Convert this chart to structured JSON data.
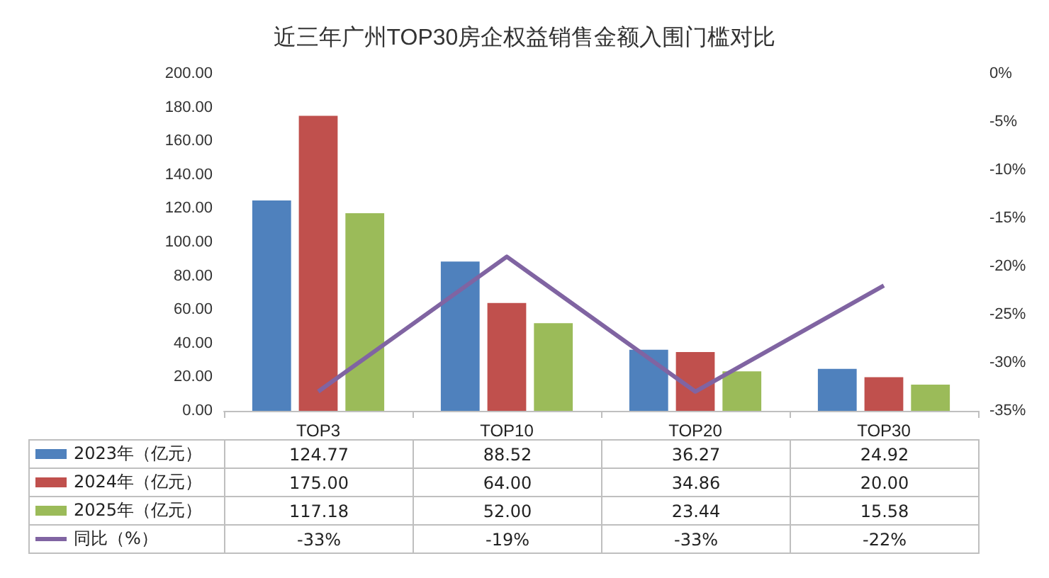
{
  "chart_data": {
    "type": "bar",
    "title": "近三年广州TOP30房企权益销售金额入围门槛对比",
    "categories": [
      "TOP3",
      "TOP10",
      "TOP20",
      "TOP30"
    ],
    "series": [
      {
        "name": "2023年（亿元）",
        "color": "#4f81bd",
        "values": [
          124.77,
          88.52,
          36.27,
          24.92
        ],
        "value_labels": [
          "124.77",
          "88.52",
          "36.27",
          "24.92"
        ]
      },
      {
        "name": "2024年（亿元）",
        "color": "#c0504d",
        "values": [
          175.0,
          64.0,
          34.86,
          20.0
        ],
        "value_labels": [
          "175.00",
          "64.00",
          "34.86",
          "20.00"
        ]
      },
      {
        "name": "2025年（亿元）",
        "color": "#9bbb59",
        "values": [
          117.18,
          52.0,
          23.44,
          15.58
        ],
        "value_labels": [
          "117.18",
          "52.00",
          "23.44",
          "15.58"
        ]
      },
      {
        "name": "同比（%）",
        "type": "line",
        "axis": "y2",
        "color": "#8064a2",
        "values": [
          -33,
          -19,
          -33,
          -22
        ],
        "value_labels": [
          "-33%",
          "-19%",
          "-33%",
          "-22%"
        ]
      }
    ],
    "ylim": [
      0,
      200
    ],
    "yticks": [
      {
        "value": 0,
        "label": "0.00"
      },
      {
        "value": 20,
        "label": "20.00"
      },
      {
        "value": 40,
        "label": "40.00"
      },
      {
        "value": 60,
        "label": "60.00"
      },
      {
        "value": 80,
        "label": "80.00"
      },
      {
        "value": 100,
        "label": "100.00"
      },
      {
        "value": 120,
        "label": "120.00"
      },
      {
        "value": 140,
        "label": "140.00"
      },
      {
        "value": 160,
        "label": "160.00"
      },
      {
        "value": 180,
        "label": "180.00"
      },
      {
        "value": 200,
        "label": "200.00"
      }
    ],
    "y2lim": [
      -35,
      0
    ],
    "y2ticks": [
      {
        "value": -35,
        "label": "-35%"
      },
      {
        "value": -30,
        "label": "-30%"
      },
      {
        "value": -25,
        "label": "-25%"
      },
      {
        "value": -20,
        "label": "-20%"
      },
      {
        "value": -15,
        "label": "-15%"
      },
      {
        "value": -10,
        "label": "-10%"
      },
      {
        "value": -5,
        "label": "-5%"
      },
      {
        "value": 0,
        "label": "0%"
      }
    ],
    "legend": "bottom",
    "marker": "none",
    "line_style": "solid"
  }
}
